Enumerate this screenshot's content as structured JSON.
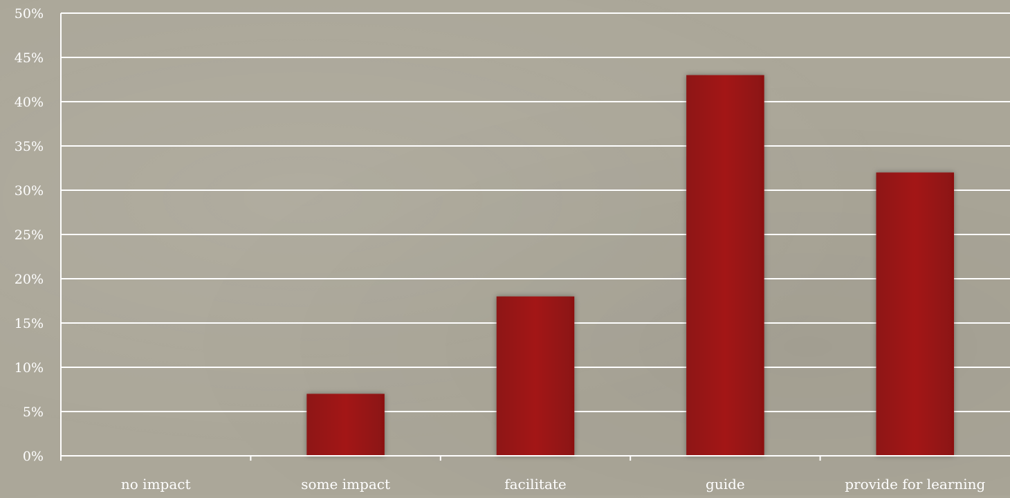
{
  "chart_data": {
    "type": "bar",
    "title": "",
    "xlabel": "",
    "ylabel": "",
    "categories": [
      "no impact",
      "some impact",
      "facilitate",
      "guide",
      "provide for learning"
    ],
    "values": [
      0,
      7,
      18,
      43,
      32
    ],
    "ylim": [
      0,
      50
    ],
    "ytick_values": [
      0,
      5,
      10,
      15,
      20,
      25,
      30,
      35,
      40,
      45,
      50
    ],
    "ytick_labels": [
      "0%",
      "5%",
      "10%",
      "15%",
      "20%",
      "25%",
      "30%",
      "35%",
      "40%",
      "45%",
      "50%"
    ],
    "grid": true,
    "legend": "none"
  },
  "colors": {
    "bar": "#9c1515",
    "background": "#aba799",
    "text": "#ffffff",
    "grid": "#ffffff"
  }
}
